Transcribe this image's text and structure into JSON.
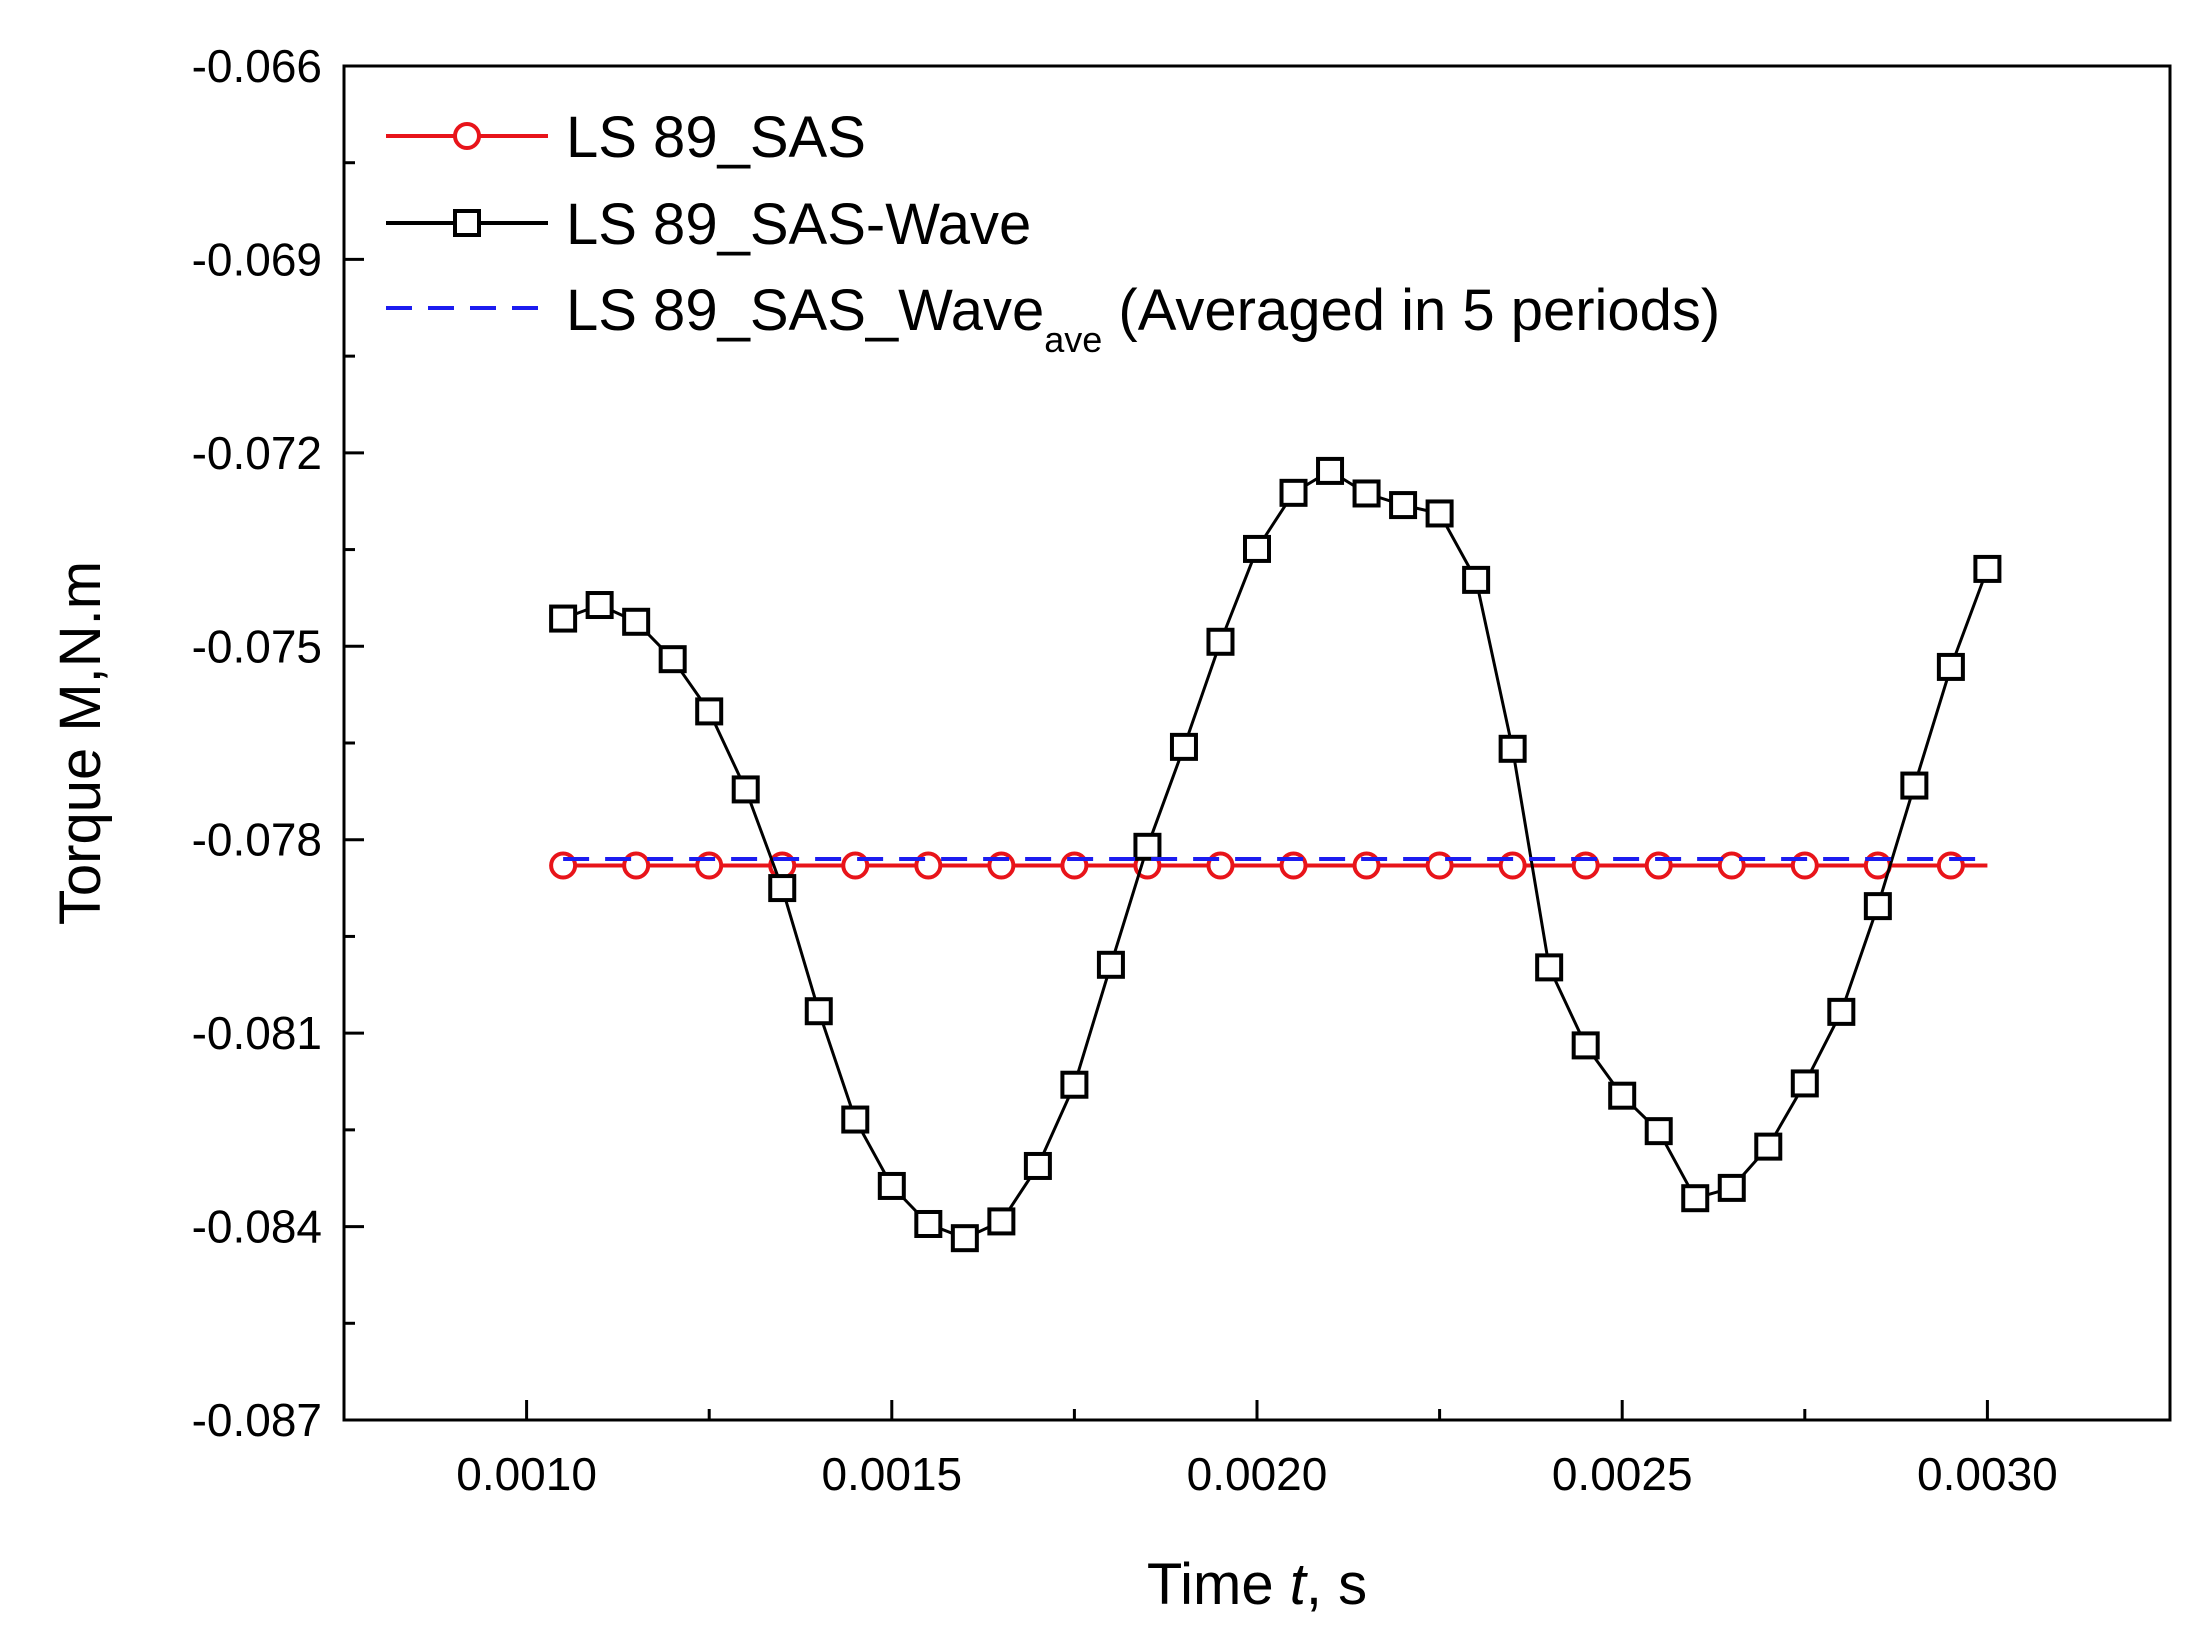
{
  "chart_data": {
    "type": "line",
    "title": "",
    "xlabel": {
      "prefix": "Time ",
      "italic": "t",
      "suffix": ", s"
    },
    "ylabel": "Torque M,N.m",
    "xlim": [
      0.00075,
      0.00325
    ],
    "ylim": [
      -0.087,
      -0.066
    ],
    "xticks": [
      0.001,
      0.0015,
      0.002,
      0.0025,
      0.003
    ],
    "xtick_labels": [
      "0.0010",
      "0.0015",
      "0.0020",
      "0.0025",
      "0.0030"
    ],
    "yticks": [
      -0.066,
      -0.069,
      -0.072,
      -0.075,
      -0.078,
      -0.081,
      -0.084,
      -0.087
    ],
    "ytick_labels": [
      "-0.066",
      "-0.069",
      "-0.072",
      "-0.075",
      "-0.078",
      "-0.081",
      "-0.084",
      "-0.087"
    ],
    "grid": false,
    "legend_position": "top-left",
    "series": [
      {
        "name": "LS 89_SAS",
        "color": "#e8141a",
        "marker": "circle",
        "line_style": "solid",
        "x": [
          0.00105,
          0.00115,
          0.00125,
          0.00135,
          0.00145,
          0.00155,
          0.00165,
          0.00175,
          0.00185,
          0.00195,
          0.00205,
          0.00215,
          0.00225,
          0.00235,
          0.00245,
          0.00255,
          0.00265,
          0.00275,
          0.00285,
          0.00295
        ],
        "y": [
          -0.0784,
          -0.0784,
          -0.0784,
          -0.0784,
          -0.0784,
          -0.0784,
          -0.0784,
          -0.0784,
          -0.0784,
          -0.0784,
          -0.0784,
          -0.0784,
          -0.0784,
          -0.0784,
          -0.0784,
          -0.0784,
          -0.0784,
          -0.0784,
          -0.0784,
          -0.0784
        ],
        "line_x": [
          0.00105,
          0.003
        ]
      },
      {
        "name": "LS 89_SAS-Wave",
        "color": "#000000",
        "marker": "square",
        "line_style": "solid",
        "x": [
          0.00105,
          0.0011,
          0.00115,
          0.0012,
          0.00125,
          0.0013,
          0.00135,
          0.0014,
          0.00145,
          0.0015,
          0.00155,
          0.0016,
          0.00165,
          0.0017,
          0.00175,
          0.0018,
          0.00185,
          0.0019,
          0.00195,
          0.002,
          0.00205,
          0.0021,
          0.00215,
          0.0022,
          0.00225,
          0.0023,
          0.00235,
          0.0024,
          0.00245,
          0.0025,
          0.00255,
          0.0026,
          0.00265,
          0.0027,
          0.00275,
          0.0028,
          0.00285,
          0.0029,
          0.00295,
          0.003
        ],
        "y": [
          -0.07457,
          -0.07436,
          -0.07462,
          -0.0752,
          -0.07601,
          -0.07722,
          -0.07875,
          -0.08066,
          -0.08234,
          -0.08337,
          -0.08396,
          -0.08418,
          -0.08392,
          -0.08306,
          -0.0818,
          -0.07994,
          -0.07811,
          -0.07656,
          -0.07493,
          -0.07349,
          -0.07262,
          -0.07228,
          -0.07263,
          -0.07281,
          -0.07294,
          -0.07397,
          -0.07659,
          -0.07998,
          -0.08119,
          -0.08197,
          -0.08252,
          -0.08356,
          -0.0834,
          -0.08276,
          -0.08178,
          -0.08067,
          -0.07903,
          -0.07716,
          -0.07532,
          -0.0738
        ]
      },
      {
        "name": "LS 89_SAS_Wave",
        "subscript": "ave",
        "suffix": " (Averaged in 5 periods)",
        "color": "#1c1cf0",
        "marker": "none",
        "line_style": "dashed",
        "x": [
          0.00105,
          0.003
        ],
        "y": [
          -0.0783,
          -0.0783
        ]
      }
    ]
  }
}
